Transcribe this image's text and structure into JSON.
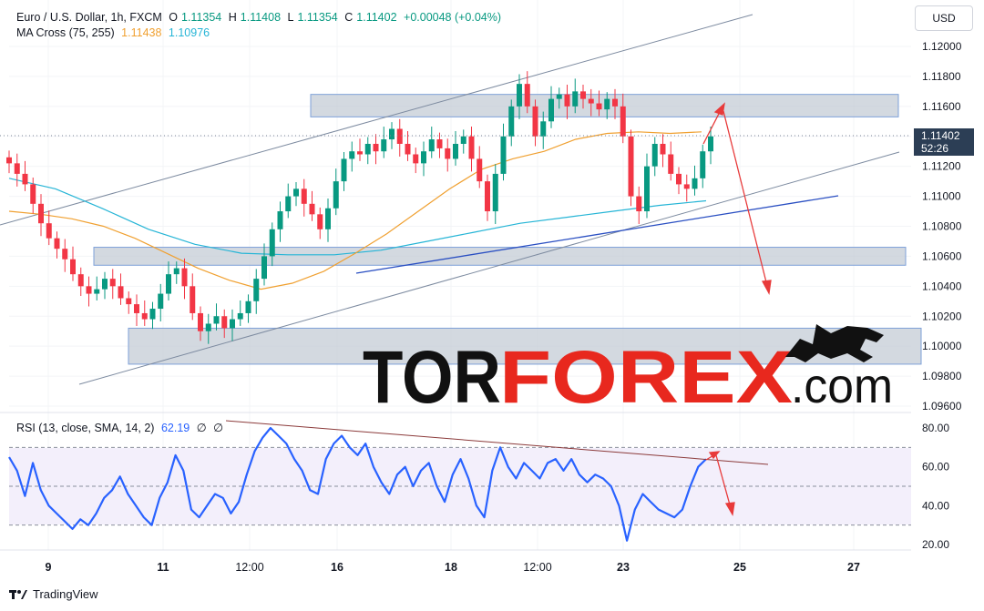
{
  "header": {
    "symbol": "Euro / U.S. Dollar, 1h, FXCM",
    "open_label": "O",
    "open": "1.11354",
    "high_label": "H",
    "high": "1.11408",
    "low_label": "L",
    "low": "1.11354",
    "close_label": "C",
    "close": "1.11402",
    "change": "+0.00048 (+0.04%)",
    "ma_title": "MA Cross (75, 255)",
    "ma_fast": "1.11438",
    "ma_slow": "1.10976",
    "rsi_title": "RSI (13, close, SMA, 14, 2)",
    "rsi_value": "62.19",
    "rsi_extra1": "∅",
    "rsi_extra2": "∅"
  },
  "currency": "USD",
  "price_tag": {
    "price": "1.11402",
    "countdown": "52:26"
  },
  "watermark": {
    "part1": "TOR",
    "part2": "FOREX",
    "part3": ".com"
  },
  "footer": {
    "brand": "TradingView"
  },
  "colors": {
    "up": "#089981",
    "down": "#f23645",
    "ma_fast": "#f0a030",
    "ma_slow": "#26b5d6",
    "rsi": "#2962ff",
    "zone": "#c4ccd6",
    "arrow": "#e83a3a",
    "watermark_red": "#e8281e"
  },
  "chart_data": [
    {
      "type": "candlestick",
      "price_axis": [
        "1.12000",
        "1.11800",
        "1.11600",
        "1.11400",
        "1.11200",
        "1.11000",
        "1.10800",
        "1.10600",
        "1.10400",
        "1.10200",
        "1.10000",
        "1.09800",
        "1.09600"
      ],
      "ylim": [
        1.0955,
        1.1215
      ],
      "time_axis": [
        "9",
        "11",
        "12:00",
        "16",
        "18",
        "12:00",
        "23",
        "25",
        "27"
      ],
      "close_series": [
        1.1122,
        1.1115,
        1.1108,
        1.1095,
        1.1082,
        1.1072,
        1.1065,
        1.1058,
        1.1048,
        1.104,
        1.1035,
        1.1038,
        1.1045,
        1.104,
        1.1032,
        1.1028,
        1.1022,
        1.1018,
        1.1025,
        1.1035,
        1.1048,
        1.1052,
        1.104,
        1.1022,
        1.101,
        1.1015,
        1.102,
        1.1012,
        1.1018,
        1.1022,
        1.103,
        1.1045,
        1.106,
        1.1078,
        1.109,
        1.11,
        1.1105,
        1.1095,
        1.1088,
        1.1078,
        1.1092,
        1.111,
        1.1125,
        1.113,
        1.1128,
        1.1135,
        1.113,
        1.1138,
        1.1145,
        1.1135,
        1.1128,
        1.1122,
        1.113,
        1.1138,
        1.1132,
        1.1125,
        1.1135,
        1.114,
        1.1125,
        1.111,
        1.109,
        1.1115,
        1.114,
        1.116,
        1.1175,
        1.116,
        1.114,
        1.115,
        1.1165,
        1.1168,
        1.116,
        1.117,
        1.1165,
        1.1162,
        1.1158,
        1.1165,
        1.116,
        1.114,
        1.11,
        1.109,
        1.112,
        1.1135,
        1.1128,
        1.1115,
        1.1108,
        1.1105,
        1.1112,
        1.113,
        1.114
      ],
      "ma_fast": {
        "name": "MA 75",
        "values": [
          1.109,
          1.1088,
          1.1085,
          1.108,
          1.1072,
          1.1062,
          1.1052,
          1.1044,
          1.1038,
          1.1042,
          1.105,
          1.1062,
          1.1075,
          1.109,
          1.1105,
          1.1118,
          1.1125,
          1.113,
          1.1138,
          1.1142,
          1.1143,
          1.1142,
          1.1143
        ]
      },
      "ma_slow": {
        "name": "MA 255",
        "values": [
          1.1112,
          1.1105,
          1.1092,
          1.1078,
          1.1068,
          1.1062,
          1.1061,
          1.1061,
          1.1064,
          1.107,
          1.1076,
          1.1082,
          1.1086,
          1.109,
          1.1094,
          1.1097
        ]
      },
      "zones": [
        {
          "from": 1.1153,
          "to": 1.1168
        },
        {
          "from": 1.1054,
          "to": 1.1066
        },
        {
          "from": 1.0988,
          "to": 1.1012
        }
      ]
    },
    {
      "type": "line",
      "name": "RSI",
      "y_axis": [
        "80.00",
        "60.00",
        "40.00",
        "20.00"
      ],
      "ylim": [
        15,
        85
      ],
      "bands": [
        70,
        50,
        30
      ],
      "values": [
        65,
        58,
        45,
        62,
        48,
        40,
        36,
        32,
        28,
        33,
        30,
        36,
        44,
        48,
        55,
        46,
        40,
        34,
        30,
        44,
        52,
        66,
        58,
        38,
        34,
        40,
        46,
        44,
        36,
        42,
        56,
        68,
        75,
        80,
        76,
        72,
        64,
        58,
        48,
        46,
        64,
        72,
        76,
        70,
        66,
        72,
        60,
        52,
        46,
        56,
        60,
        50,
        58,
        62,
        50,
        42,
        56,
        64,
        54,
        40,
        34,
        58,
        70,
        60,
        54,
        62,
        58,
        54,
        62,
        64,
        58,
        64,
        56,
        52,
        56,
        54,
        50,
        40,
        22,
        38,
        46,
        42,
        38,
        36,
        34,
        38,
        50,
        60,
        64
      ]
    }
  ]
}
